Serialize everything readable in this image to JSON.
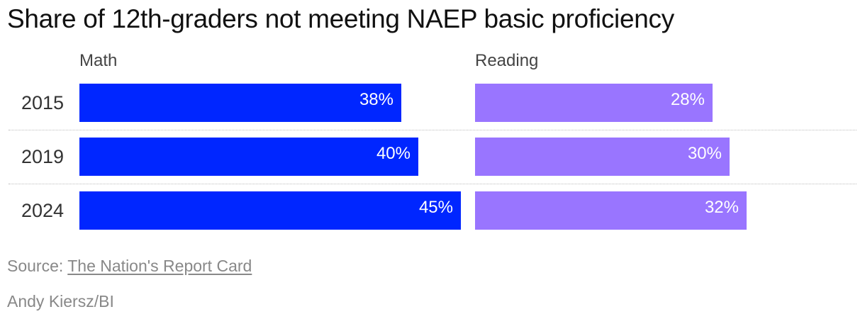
{
  "chart_data": {
    "type": "bar",
    "title": "Share of 12th-graders not meeting NAEP basic proficiency",
    "categories": [
      "2015",
      "2019",
      "2024"
    ],
    "series": [
      {
        "name": "Math",
        "values": [
          38,
          40,
          45
        ],
        "labels": [
          "38%",
          "40%",
          "45%"
        ],
        "color": "#0026ff"
      },
      {
        "name": "Reading",
        "values": [
          28,
          30,
          32
        ],
        "labels": [
          "28%",
          "30%",
          "32%"
        ],
        "color": "#9975ff"
      }
    ],
    "orientation": "horizontal",
    "layout": "small-multiples",
    "xlim": [
      0,
      50
    ],
    "grid": false
  },
  "source": {
    "prefix": "Source:",
    "link_text": "The Nation's Report Card"
  },
  "credit": "Andy Kiersz/BI"
}
